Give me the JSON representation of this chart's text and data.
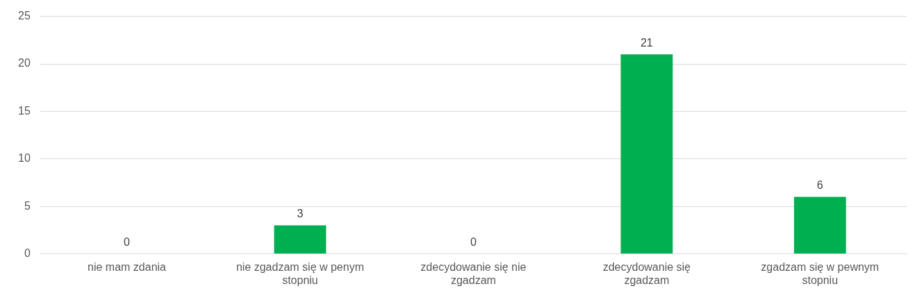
{
  "chart_data": {
    "type": "bar",
    "categories": [
      "nie mam zdania",
      "nie zgadzam się w penym stopniu",
      "zdecydowanie się nie zgadzam",
      "zdecydowanie się zgadzam",
      "zgadzam się w pewnym stopniu"
    ],
    "values": [
      0,
      3,
      0,
      21,
      6
    ],
    "color": "#00b050",
    "ylim": [
      0,
      25
    ],
    "yticks": [
      0,
      5,
      10,
      15,
      20,
      25
    ],
    "grid": "y",
    "legend": false,
    "data_labels": true
  }
}
